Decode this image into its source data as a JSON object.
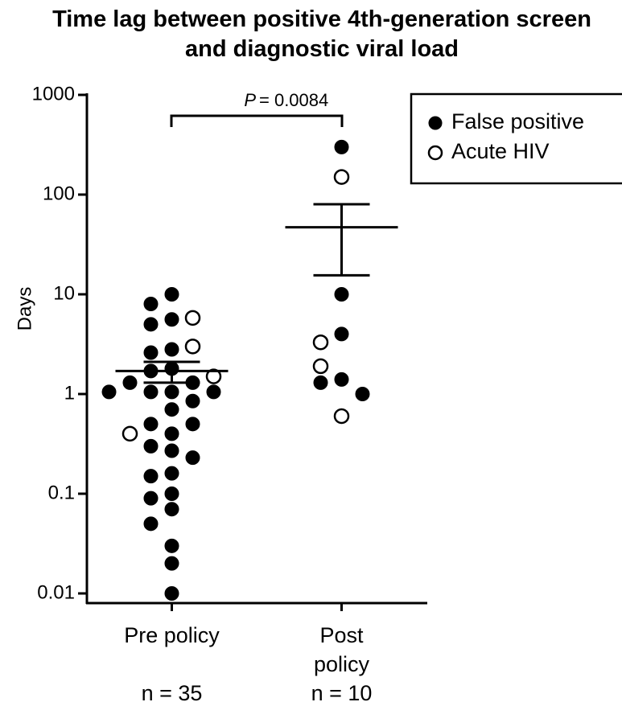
{
  "chart_data": {
    "type": "dot",
    "title": "Time lag between positive 4th-generation screen and diagnostic viral load",
    "y_label": "Days",
    "categories": [
      "Pre policy",
      "Post policy"
    ],
    "n_labels": [
      "n = 35",
      "n = 10"
    ],
    "y_log": true,
    "ylim": [
      0.008,
      1000
    ],
    "yticks": [
      0.01,
      0.1,
      1,
      10,
      100,
      1000
    ],
    "legend_position": "upper right",
    "series": [
      {
        "name": "False positive",
        "color": "#000000",
        "marker": "filled",
        "values": [
          [
            10,
            8,
            5.6,
            5,
            2.8,
            2.6,
            1.8,
            1.7,
            1.3,
            1.3,
            1.05,
            1.05,
            1.05,
            1.05,
            0.85,
            0.7,
            0.5,
            0.5,
            0.4,
            0.3,
            0.27,
            0.23,
            0.16,
            0.15,
            0.1,
            0.09,
            0.07,
            0.05,
            0.03,
            0.02,
            0.01
          ],
          [
            300,
            10,
            4,
            1.4,
            1.3,
            1
          ]
        ]
      },
      {
        "name": "Acute HIV",
        "color": "#000000",
        "marker": "open",
        "values": [
          [
            5.8,
            3,
            1.5,
            0.4
          ],
          [
            150,
            3.3,
            1.9,
            0.6
          ]
        ]
      }
    ],
    "summary": [
      {
        "mean": 1.7,
        "lower": 1.3,
        "upper": 2.1
      },
      {
        "mean": 47,
        "lower": 15.5,
        "upper": 80
      }
    ],
    "comparison": {
      "label": "P",
      "text": "= 0.0084"
    }
  }
}
